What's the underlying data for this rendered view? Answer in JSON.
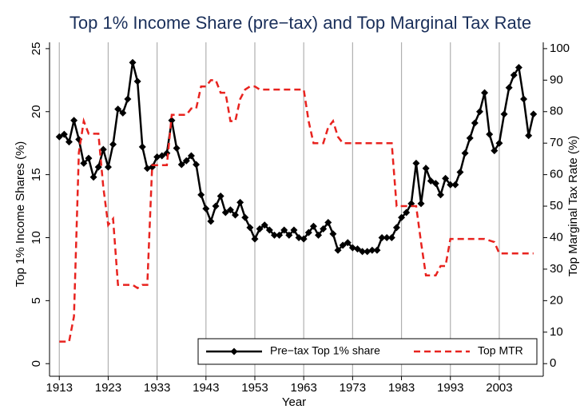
{
  "chart_data": {
    "type": "line",
    "title": "Top 1% Income Share (pre−tax) and Top Marginal Tax Rate",
    "x_label": "Year",
    "y_label": "Top 1% Income Shares (%)",
    "y2_label": "Top Marginal Tax Rate (%)",
    "x": [
      1913,
      1914,
      1915,
      1916,
      1917,
      1918,
      1919,
      1920,
      1921,
      1922,
      1923,
      1924,
      1925,
      1926,
      1927,
      1928,
      1929,
      1930,
      1931,
      1932,
      1933,
      1934,
      1935,
      1936,
      1937,
      1938,
      1939,
      1940,
      1941,
      1942,
      1943,
      1944,
      1945,
      1946,
      1947,
      1948,
      1949,
      1950,
      1951,
      1952,
      1953,
      1954,
      1955,
      1956,
      1957,
      1958,
      1959,
      1960,
      1961,
      1962,
      1963,
      1964,
      1965,
      1966,
      1967,
      1968,
      1969,
      1970,
      1971,
      1972,
      1973,
      1974,
      1975,
      1976,
      1977,
      1978,
      1979,
      1980,
      1981,
      1982,
      1983,
      1984,
      1985,
      1986,
      1987,
      1988,
      1989,
      1990,
      1991,
      1992,
      1993,
      1994,
      1995,
      1996,
      1997,
      1998,
      1999,
      2000,
      2001,
      2002,
      2003,
      2004,
      2005,
      2006,
      2007,
      2008,
      2009,
      2010
    ],
    "series": [
      {
        "name": "Pre−tax Top 1% share",
        "color": "#000000",
        "marker": "diamond",
        "dash": false,
        "values": [
          18.0,
          18.2,
          17.6,
          19.3,
          17.8,
          15.9,
          16.3,
          14.8,
          15.6,
          17.0,
          15.6,
          17.4,
          20.2,
          19.9,
          21.0,
          23.9,
          22.4,
          17.2,
          15.5,
          15.6,
          16.4,
          16.5,
          16.7,
          19.3,
          17.1,
          15.8,
          16.1,
          16.5,
          15.8,
          13.4,
          12.3,
          11.3,
          12.5,
          13.3,
          12.0,
          12.2,
          11.8,
          12.8,
          11.6,
          10.8,
          9.9,
          10.7,
          11.0,
          10.6,
          10.2,
          10.2,
          10.6,
          10.2,
          10.6,
          10.0,
          9.9,
          10.4,
          10.9,
          10.2,
          10.7,
          11.2,
          10.3,
          9.0,
          9.4,
          9.6,
          9.2,
          9.1,
          8.9,
          8.9,
          9.0,
          9.0,
          10.0,
          10.0,
          10.0,
          10.8,
          11.6,
          12.0,
          12.7,
          15.9,
          12.7,
          15.5,
          14.5,
          14.3,
          13.4,
          14.7,
          14.2,
          14.2,
          15.2,
          16.7,
          17.9,
          19.1,
          20.0,
          21.5,
          18.2,
          16.9,
          17.5,
          19.8,
          21.9,
          22.9,
          23.5,
          21.0,
          18.1,
          19.8
        ]
      },
      {
        "name": "Top MTR",
        "color": "#e8231f",
        "marker": "none",
        "dash": true,
        "axis": "y2",
        "values": [
          7,
          7,
          7,
          15,
          67,
          77,
          73,
          73,
          73,
          56,
          44,
          46,
          25,
          25,
          25,
          25,
          24,
          25,
          25,
          63,
          63,
          63,
          63,
          79,
          79,
          79,
          79,
          81,
          81,
          88,
          88,
          90,
          90,
          86,
          86,
          77,
          77,
          84,
          87,
          88,
          88,
          87,
          87,
          87,
          87,
          87,
          87,
          87,
          87,
          87,
          87,
          77,
          70,
          70,
          70,
          75,
          77,
          72,
          70,
          70,
          70,
          70,
          70,
          70,
          70,
          70,
          70,
          70,
          70,
          50,
          50,
          50,
          50,
          50,
          38.5,
          28,
          28,
          28,
          31,
          31,
          39.6,
          39.6,
          39.6,
          39.6,
          39.6,
          39.6,
          39.6,
          39.6,
          39.1,
          38.6,
          35,
          35,
          35,
          35,
          35,
          35,
          35,
          35
        ]
      }
    ],
    "xlim": [
      1911,
      2012
    ],
    "xticks": [
      1913,
      1923,
      1933,
      1943,
      1953,
      1963,
      1973,
      1983,
      1993,
      2003
    ],
    "ylim": [
      -1,
      25.5
    ],
    "yticks": [
      0,
      5,
      10,
      15,
      20,
      25
    ],
    "y2lim": [
      -4,
      102
    ],
    "y2ticks": [
      0,
      10,
      20,
      30,
      40,
      50,
      60,
      70,
      80,
      90,
      100
    ],
    "grid": true,
    "legend": "lower right"
  }
}
